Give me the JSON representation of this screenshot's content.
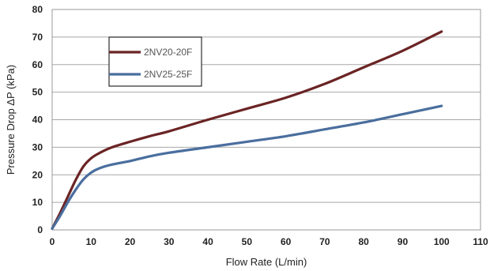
{
  "chart_data": {
    "type": "line",
    "xlabel": "Flow Rate (L/min)",
    "ylabel": "Pressure Drop  ΔP  (kPa)",
    "xlim": [
      0,
      110
    ],
    "ylim": [
      0,
      80
    ],
    "x_ticks": [
      0,
      10,
      20,
      30,
      40,
      50,
      60,
      70,
      80,
      90,
      100,
      110
    ],
    "y_ticks": [
      0,
      10,
      20,
      30,
      40,
      50,
      60,
      70,
      80
    ],
    "grid": "horizontal",
    "legend_position": "top-left",
    "series": [
      {
        "name": "2NV20-20F",
        "color": "#6b2424",
        "x": [
          0,
          2,
          4,
          6,
          8,
          10,
          12,
          15,
          20,
          25,
          30,
          40,
          50,
          60,
          70,
          80,
          90,
          100
        ],
        "y": [
          0.5,
          6,
          12,
          18,
          23,
          26,
          27.8,
          29.8,
          32,
          34,
          35.8,
          40,
          44,
          48,
          53,
          59,
          65,
          72
        ]
      },
      {
        "name": "2NV25-25F",
        "color": "#4a6e9e",
        "x": [
          0,
          2,
          4,
          6,
          8,
          10,
          12,
          15,
          20,
          25,
          30,
          40,
          50,
          60,
          70,
          80,
          90,
          100
        ],
        "y": [
          0.5,
          5,
          10,
          14.5,
          18.3,
          20.8,
          22.3,
          23.6,
          25,
          26.7,
          28,
          30,
          32,
          34,
          36.5,
          39,
          42,
          45
        ]
      }
    ]
  }
}
